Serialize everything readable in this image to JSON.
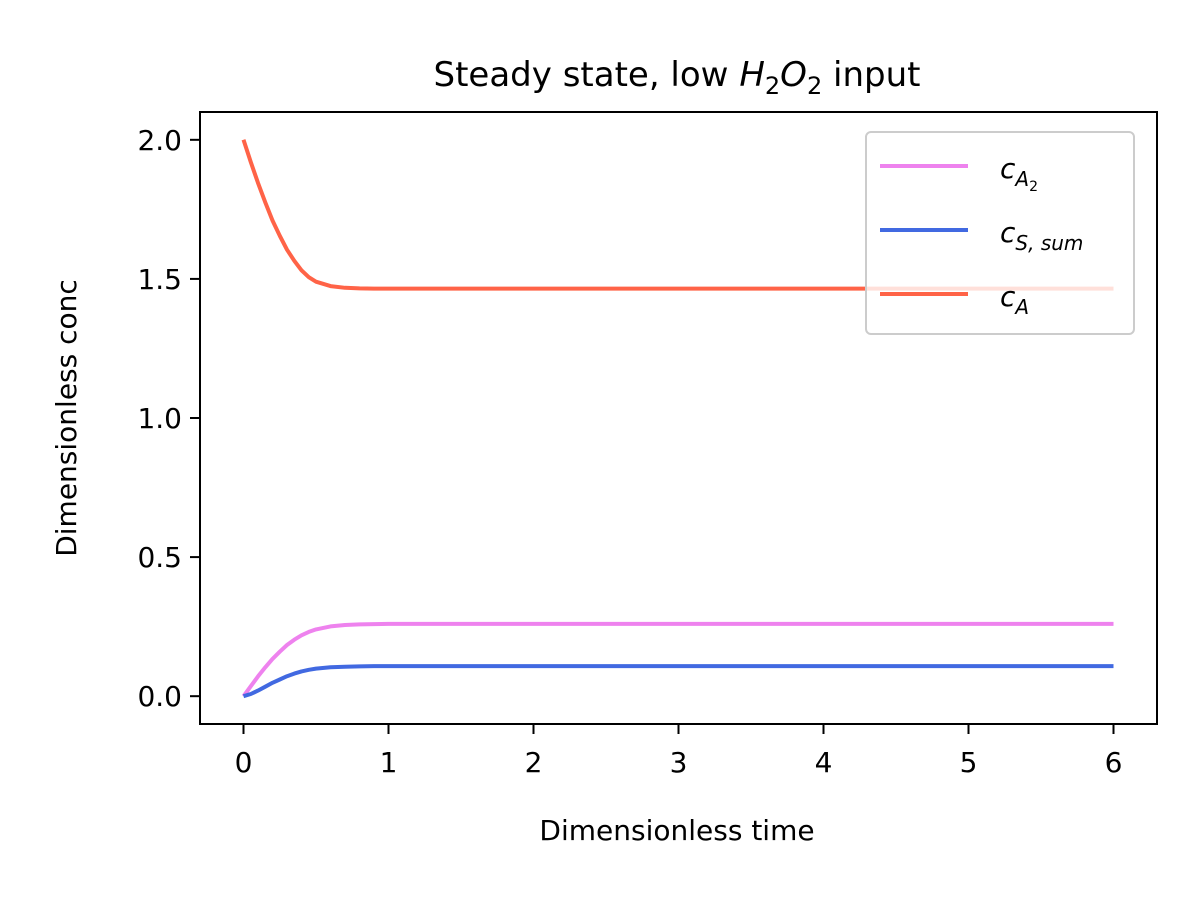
{
  "chart_data": {
    "type": "line",
    "title": {
      "text": "Steady state, low ",
      "math_base_1": "H",
      "math_sub_1": "2",
      "math_base_2": "O",
      "math_sub_2": "2",
      "suffix": " input"
    },
    "xlabel": "Dimensionless time",
    "ylabel": "Dimensionless conc",
    "xlim": [
      -0.3,
      6.3
    ],
    "ylim": [
      -0.1,
      2.1
    ],
    "xticks": [
      0,
      1,
      2,
      3,
      4,
      5,
      6
    ],
    "xtick_labels": [
      "0",
      "1",
      "2",
      "3",
      "4",
      "5",
      "6"
    ],
    "yticks": [
      0.0,
      0.5,
      1.0,
      1.5,
      2.0
    ],
    "ytick_labels": [
      "0.0",
      "0.5",
      "1.0",
      "1.5",
      "2.0"
    ],
    "grid": false,
    "legend_position": "top-right",
    "series": [
      {
        "key": "cA2",
        "legend_base": "c",
        "legend_sub": "A",
        "legend_subsub": "2",
        "color": "#ee82ee",
        "x": [
          0,
          0.05,
          0.1,
          0.15,
          0.2,
          0.25,
          0.3,
          0.35,
          0.4,
          0.45,
          0.5,
          0.6,
          0.7,
          0.8,
          0.9,
          1.0,
          1.5,
          2.0,
          3.0,
          4.0,
          5.0,
          6.0
        ],
        "y": [
          0.0,
          0.036,
          0.071,
          0.104,
          0.134,
          0.16,
          0.184,
          0.203,
          0.219,
          0.231,
          0.24,
          0.251,
          0.256,
          0.258,
          0.259,
          0.26,
          0.26,
          0.26,
          0.26,
          0.26,
          0.26,
          0.26
        ]
      },
      {
        "key": "cSsum",
        "legend_base": "c",
        "legend_sub": "S, sum",
        "legend_subsub": "",
        "color": "#4169e1",
        "x": [
          0,
          0.05,
          0.1,
          0.15,
          0.2,
          0.25,
          0.3,
          0.35,
          0.4,
          0.45,
          0.5,
          0.6,
          0.7,
          0.8,
          0.9,
          1.0,
          1.5,
          2.0,
          3.0,
          4.0,
          5.0,
          6.0
        ],
        "y": [
          0.0,
          0.008,
          0.02,
          0.034,
          0.048,
          0.06,
          0.072,
          0.081,
          0.089,
          0.095,
          0.099,
          0.104,
          0.106,
          0.107,
          0.108,
          0.108,
          0.108,
          0.108,
          0.108,
          0.108,
          0.108,
          0.108
        ]
      },
      {
        "key": "cA",
        "legend_base": "c",
        "legend_sub": "A",
        "legend_subsub": "",
        "color": "#ff6347",
        "x": [
          0,
          0.05,
          0.1,
          0.15,
          0.2,
          0.25,
          0.3,
          0.35,
          0.4,
          0.45,
          0.5,
          0.6,
          0.7,
          0.8,
          0.9,
          1.0,
          1.5,
          2.0,
          3.0,
          4.0,
          5.0,
          6.0
        ],
        "y": [
          2.0,
          1.92,
          1.845,
          1.775,
          1.71,
          1.655,
          1.605,
          1.565,
          1.531,
          1.506,
          1.49,
          1.474,
          1.468,
          1.466,
          1.465,
          1.465,
          1.465,
          1.465,
          1.465,
          1.465,
          1.465,
          1.465
        ]
      }
    ]
  }
}
